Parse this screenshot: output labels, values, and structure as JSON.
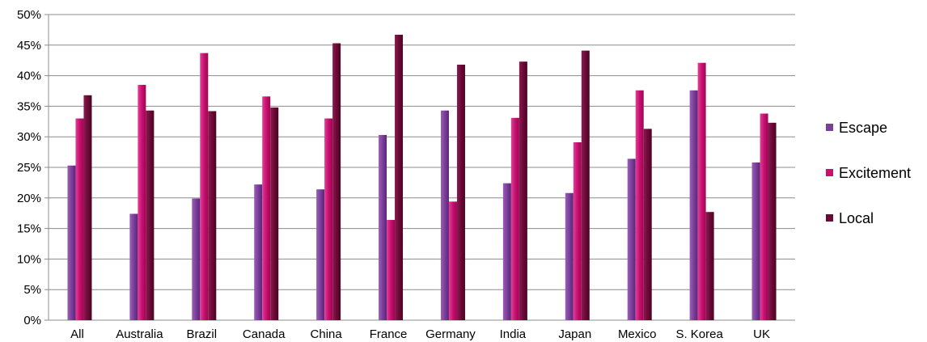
{
  "chart_data": {
    "type": "bar",
    "title": "",
    "xlabel": "",
    "ylabel": "",
    "categories": [
      "All",
      "Australia",
      "Brazil",
      "Canada",
      "China",
      "France",
      "Germany",
      "India",
      "Japan",
      "Mexico",
      "S. Korea",
      "UK"
    ],
    "series": [
      {
        "name": "Escape",
        "color": "#7b3f99",
        "values": [
          25.3,
          17.4,
          19.9,
          22.2,
          21.4,
          30.3,
          34.3,
          22.4,
          20.8,
          26.4,
          37.6,
          25.8
        ]
      },
      {
        "name": "Excitement",
        "color": "#c8106e",
        "values": [
          33.0,
          38.5,
          43.7,
          36.6,
          33.0,
          16.4,
          19.4,
          33.1,
          29.1,
          37.6,
          42.1,
          33.8
        ]
      },
      {
        "name": "Local",
        "color": "#6b0a36",
        "values": [
          36.8,
          34.3,
          34.2,
          34.8,
          45.3,
          46.7,
          41.8,
          42.3,
          44.1,
          31.3,
          17.7,
          32.3
        ]
      }
    ],
    "ylim": [
      0,
      50
    ],
    "yticks": [
      "0%",
      "5%",
      "10%",
      "15%",
      "20%",
      "25%",
      "30%",
      "35%",
      "40%",
      "45%",
      "50%"
    ],
    "grid": true,
    "legend_position": "right"
  }
}
